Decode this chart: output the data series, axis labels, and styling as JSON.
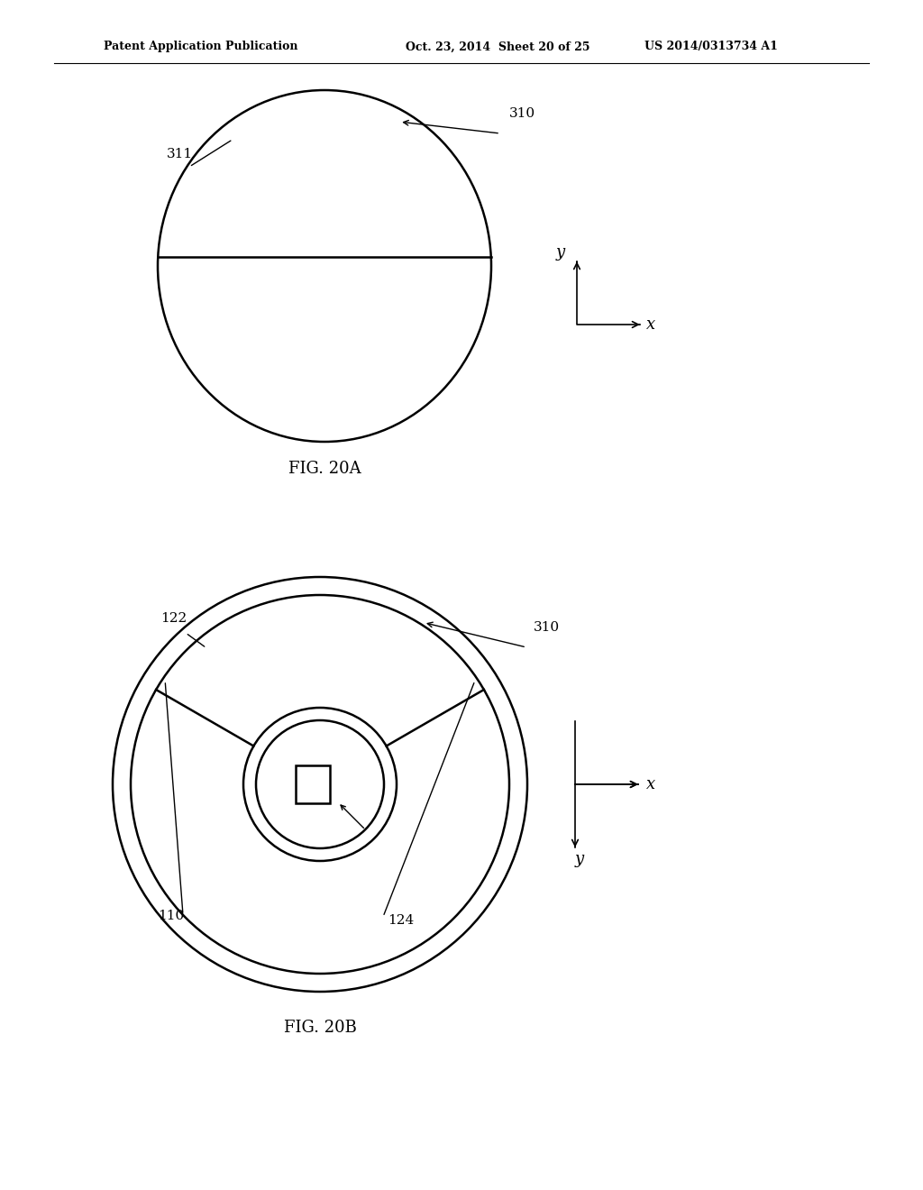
{
  "bg_color": "#ffffff",
  "line_color": "#000000",
  "header_left": "Patent Application Publication",
  "header_mid": "Oct. 23, 2014  Sheet 20 of 25",
  "header_right": "US 2014/0313734 A1",
  "fig20a_caption": "FIG. 20A",
  "fig20b_caption": "FIG. 20B",
  "label_311": "311",
  "label_310a": "310",
  "label_122": "122",
  "label_310b": "310",
  "label_110": "110",
  "label_124": "124"
}
